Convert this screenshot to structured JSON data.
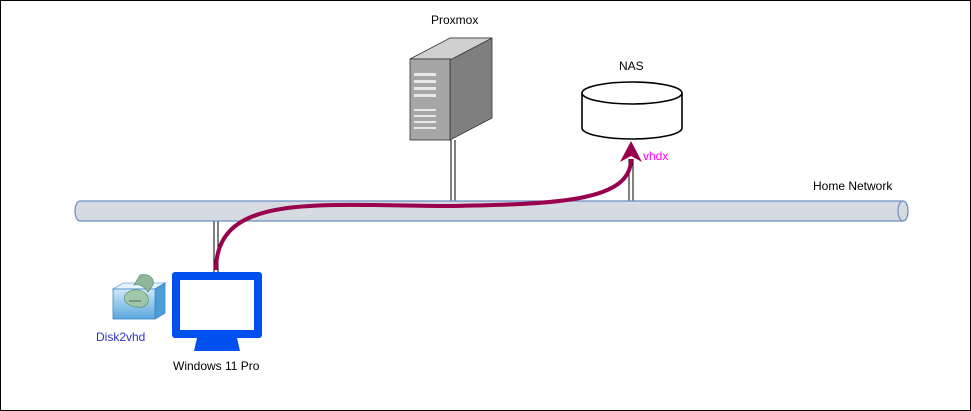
{
  "labels": {
    "server": "Proxmox",
    "nas": "NAS",
    "network": "Home Network",
    "workstation": "Windows 11 Pro",
    "tool": "Disk2vhd",
    "transfer": "vhdx"
  },
  "colors": {
    "pipe_fill": "#d6dbe1",
    "pipe_stroke": "#6c8ebf",
    "arrow": "#99004d",
    "monitor": "#0050ef",
    "tool_label": "#3333cc",
    "transfer_label": "#ff00ff",
    "server_front": "#a6a6a6",
    "server_side": "#7f7f7f"
  },
  "icons": {
    "server": "server-tower-icon",
    "nas": "storage-cylinder-icon",
    "workstation": "monitor-icon",
    "tool": "disk2vhd-icon"
  }
}
